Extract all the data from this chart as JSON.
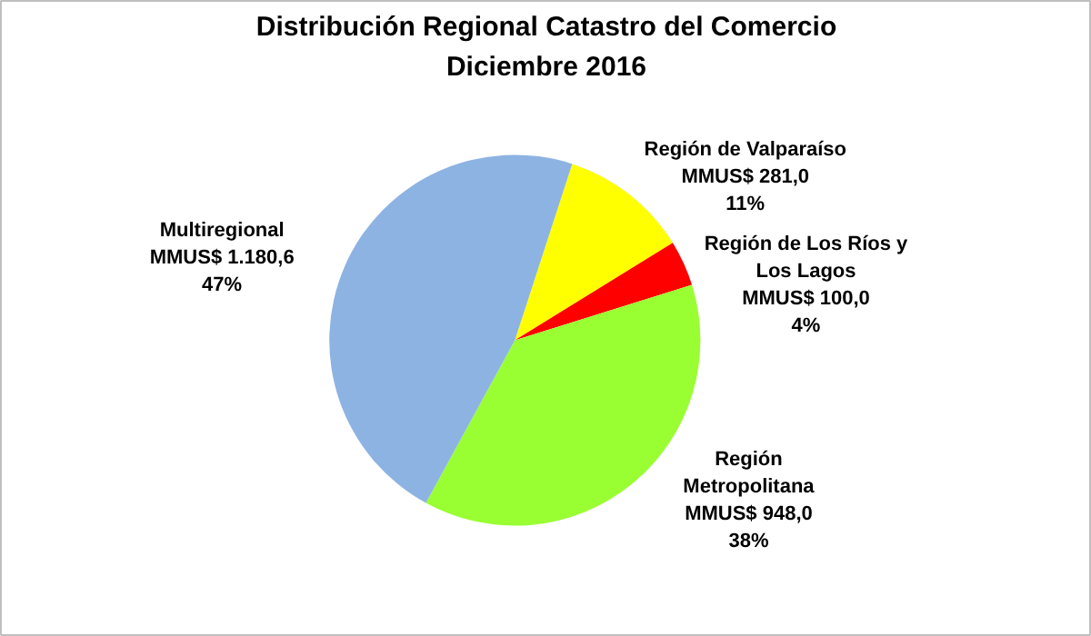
{
  "chart_data": {
    "type": "pie",
    "title": "Distribución Regional Catastro del Comercio\nDiciembre 2016",
    "categories": [
      "Región de Valparaíso",
      "Región de Los Ríos y\nLos Lagos",
      "Región\nMetropolitana",
      "Multiregional"
    ],
    "values": [
      281.0,
      100.0,
      948.0,
      1180.6
    ],
    "colors": [
      "#ffff00",
      "#ff0000",
      "#99ff33",
      "#8db3e2"
    ],
    "value_labels": [
      "MMUS$ 281,0\n11%",
      "MMUS$ 100,0\n4%",
      "MMUS$ 948,0\n38%",
      "MMUS$ 1.180,6\n47%"
    ]
  }
}
